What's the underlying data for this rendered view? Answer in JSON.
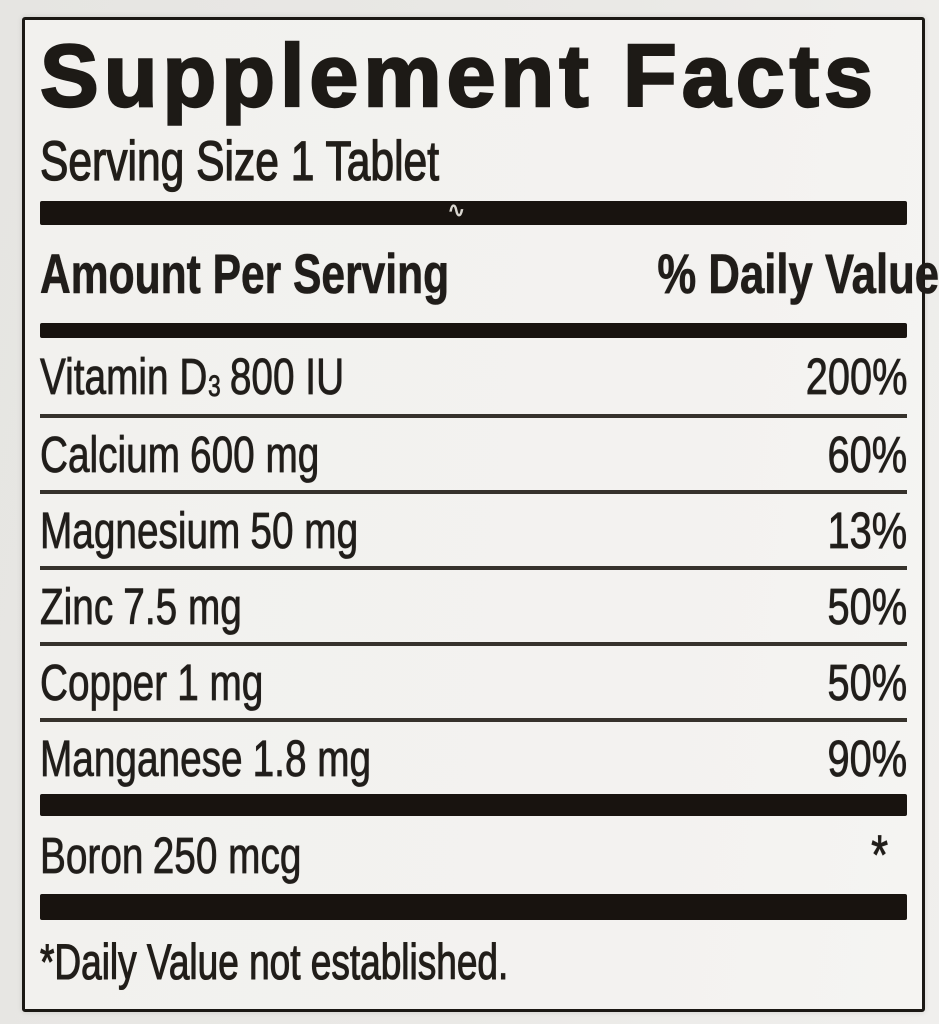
{
  "label": {
    "title": "Supplement Facts",
    "serving_size": "Serving Size 1 Tablet",
    "header": {
      "amount_col": "Amount Per Serving",
      "dv_col": "% Daily Value"
    },
    "nutrients": [
      {
        "name": "Vitamin D",
        "sub": "3",
        "amount": "800 IU",
        "daily_value": "200%"
      },
      {
        "name": "Calcium",
        "sub": "",
        "amount": "600 mg",
        "daily_value": "60%"
      },
      {
        "name": "Magnesium",
        "sub": "",
        "amount": "50 mg",
        "daily_value": "13%"
      },
      {
        "name": "Zinc",
        "sub": "",
        "amount": "7.5 mg",
        "daily_value": "50%"
      },
      {
        "name": "Copper",
        "sub": "",
        "amount": "1 mg",
        "daily_value": "50%"
      },
      {
        "name": "Manganese",
        "sub": "",
        "amount": "1.8 mg",
        "daily_value": "90%"
      }
    ],
    "other_nutrients": [
      {
        "name": "Boron",
        "sub": "",
        "amount": "250 mcg",
        "daily_value": "*"
      }
    ],
    "footnote": "*Daily Value not established.",
    "scratch_mark": "∿",
    "colors": {
      "page_bg": "#eae9e6",
      "panel_bg": "#f2f1ee",
      "ink": "#201d1a",
      "bar": "#18130f"
    }
  }
}
